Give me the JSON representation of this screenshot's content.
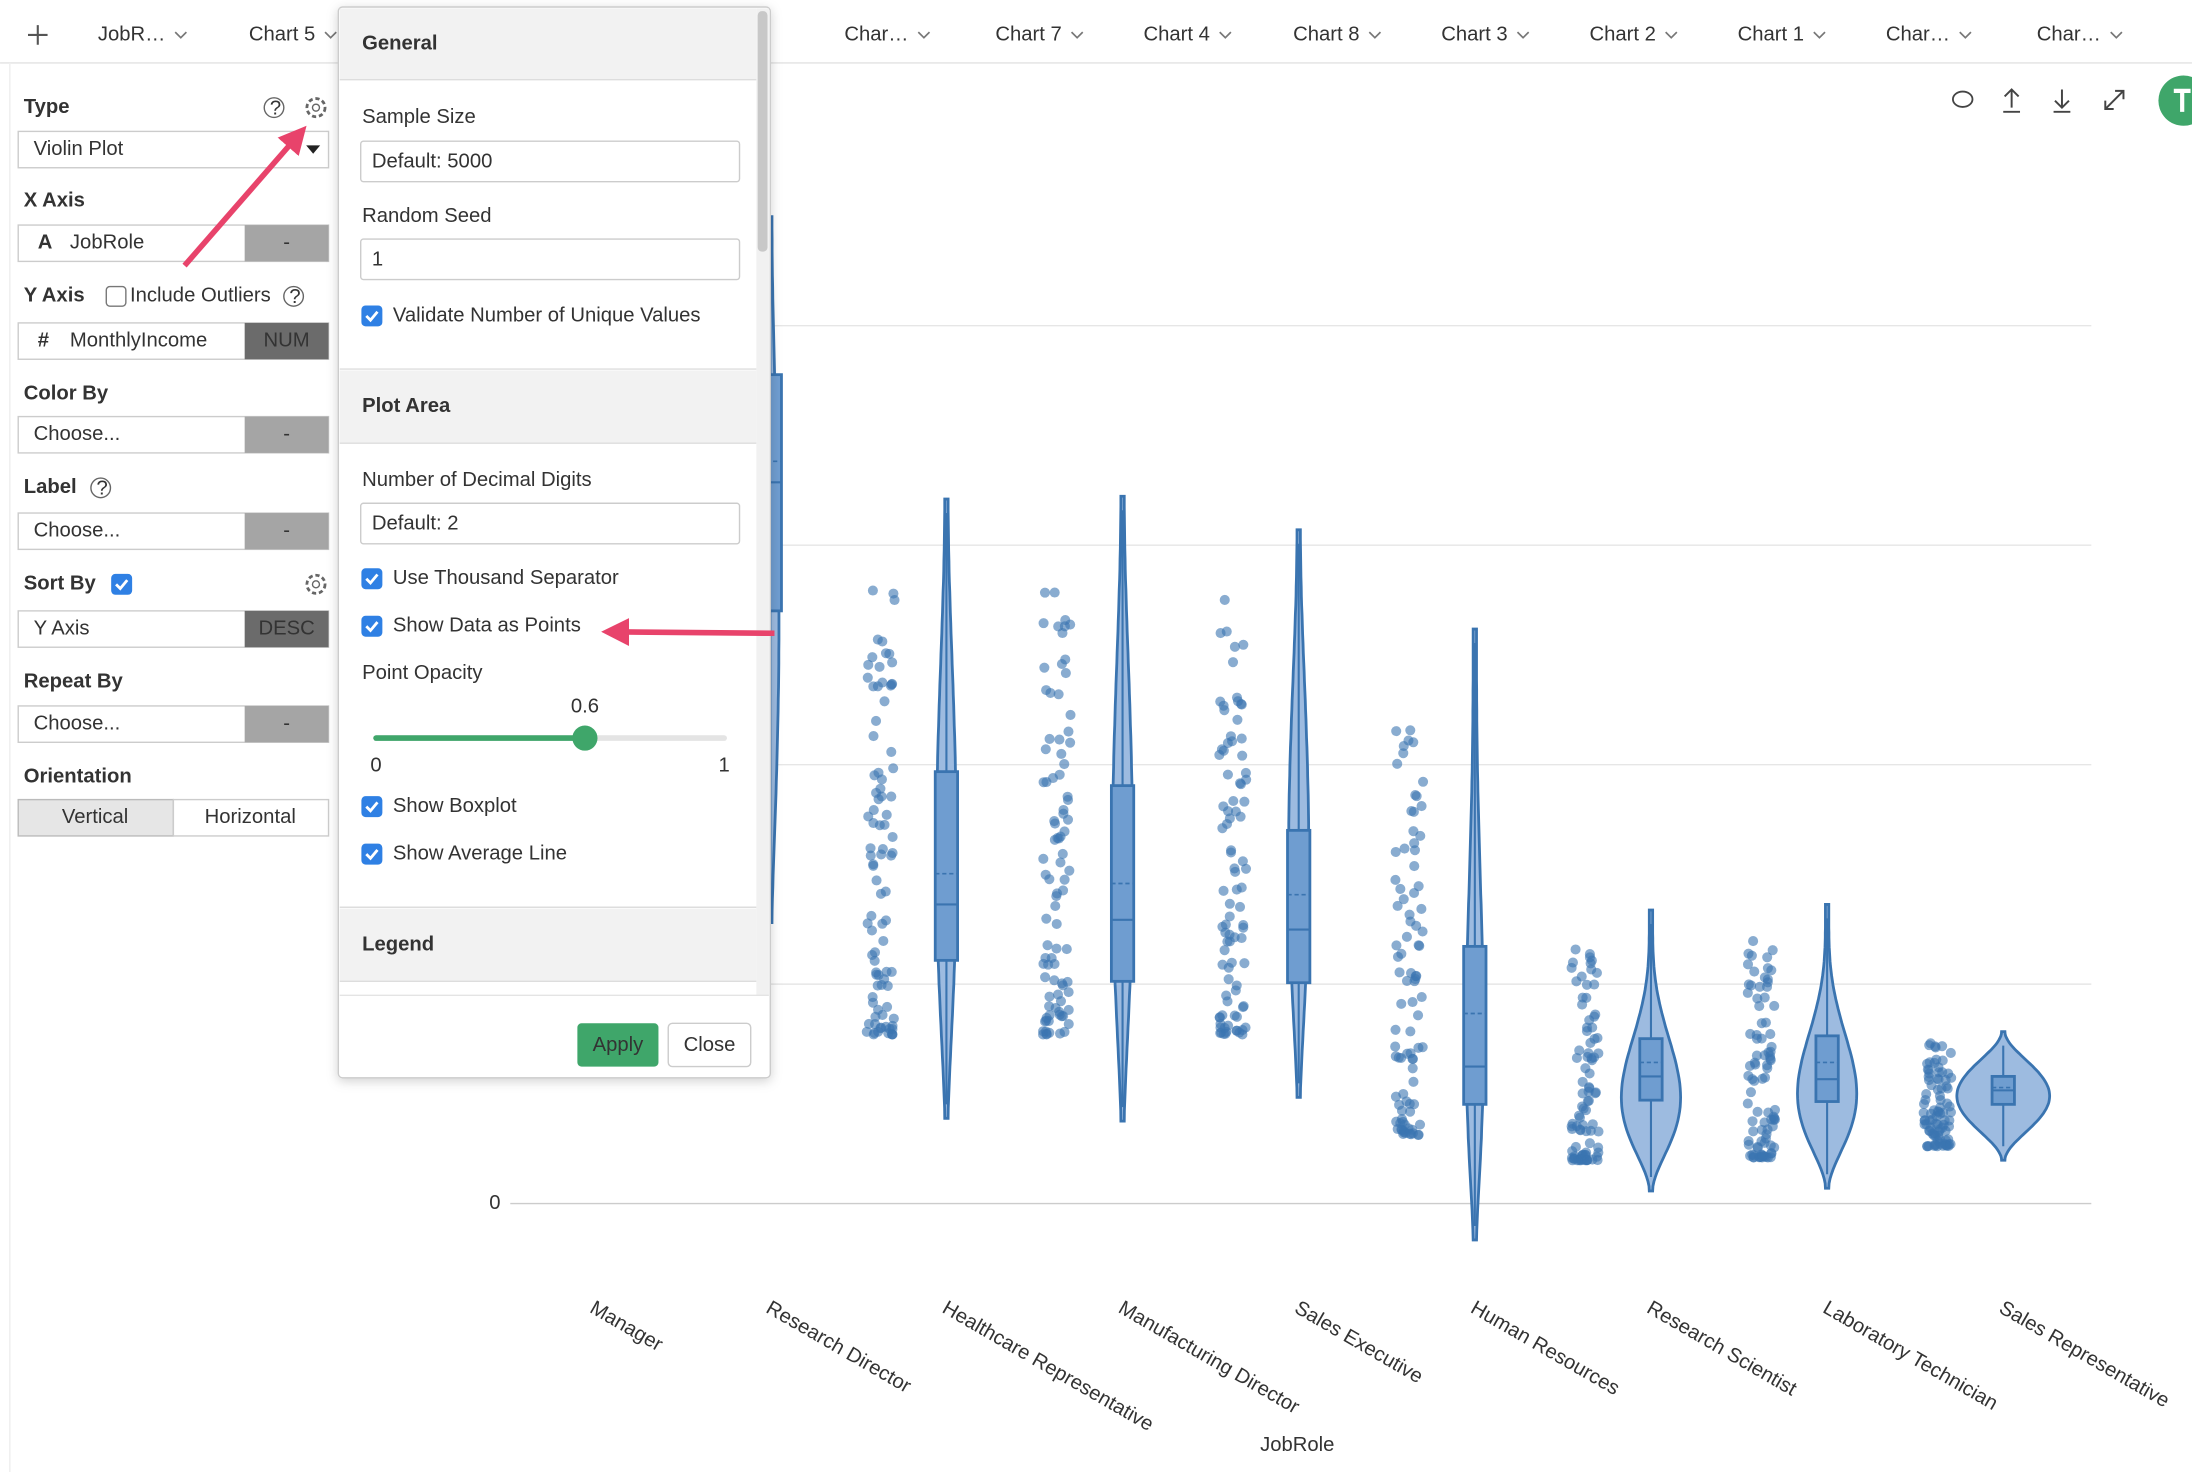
{
  "tabs": [
    "JobR…",
    "Chart 5",
    "Char…",
    "Chart 7",
    "Chart 4",
    "Chart 8",
    "Chart 3",
    "Chart 2",
    "Chart 1",
    "Char…",
    "Char…"
  ],
  "sidebar": {
    "type": {
      "label": "Type",
      "value": "Violin Plot"
    },
    "x_axis": {
      "label": "X Axis",
      "icon": "A",
      "value": "JobRole",
      "button": "-"
    },
    "y_axis": {
      "label": "Y Axis",
      "option": "Include Outliers",
      "icon": "#",
      "value": "MonthlyIncome",
      "button": "NUM"
    },
    "color_by": {
      "label": "Color By",
      "value": "Choose...",
      "button": "-"
    },
    "label": {
      "label": "Label",
      "value": "Choose...",
      "button": "-"
    },
    "sort_by": {
      "label": "Sort By",
      "value": "Y Axis",
      "button": "DESC"
    },
    "repeat_by": {
      "label": "Repeat By",
      "value": "Choose...",
      "button": "-"
    },
    "orientation": {
      "label": "Orientation",
      "options": [
        "Vertical",
        "Horizontal"
      ]
    }
  },
  "panel": {
    "general": {
      "title": "General",
      "sample_size": {
        "label": "Sample Size",
        "placeholder": "Default: 5000"
      },
      "random_seed": {
        "label": "Random Seed",
        "value": "1"
      },
      "validate": "Validate Number of Unique Values"
    },
    "plot_area": {
      "title": "Plot Area",
      "decimal_digits": {
        "label": "Number of Decimal Digits",
        "placeholder": "Default: 2"
      },
      "thousand_separator": "Use Thousand Separator",
      "show_points": "Show Data as Points",
      "point_opacity": {
        "label": "Point Opacity",
        "value": 0.6,
        "min": 0,
        "max": 1
      },
      "show_boxplot": "Show Boxplot",
      "show_average": "Show Average Line"
    },
    "legend": {
      "title": "Legend"
    },
    "apply": "Apply",
    "close": "Close"
  },
  "chart_data": {
    "type": "violin",
    "categories": [
      "Manager",
      "Research Director",
      "Healthcare Representative",
      "Manufacturing Director",
      "Sales Executive",
      "Human Resources",
      "Research Scientist",
      "Laboratory Technician",
      "Sales Representative"
    ],
    "xlabel": "JobRole",
    "ylim": [
      0,
      23000
    ],
    "yticks": [
      0
    ],
    "color": "#3a74b0"
  }
}
